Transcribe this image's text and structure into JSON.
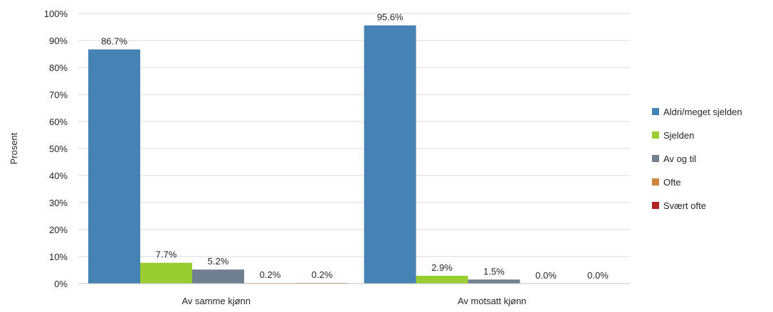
{
  "chart_data": {
    "type": "bar",
    "ylabel": "Prosent",
    "xlabel": "",
    "ylim": [
      0,
      100
    ],
    "yticks": [
      "0%",
      "10%",
      "20%",
      "30%",
      "40%",
      "50%",
      "60%",
      "70%",
      "80%",
      "90%",
      "100%"
    ],
    "grid": true,
    "legend_position": "right",
    "categories": [
      "Av samme kjønn",
      "Av motsatt kjønn"
    ],
    "series": [
      {
        "name": "Aldri/meget sjelden",
        "color": "#4682b4",
        "values": [
          86.7,
          95.6
        ],
        "labels": [
          "86.7%",
          "95.6%"
        ]
      },
      {
        "name": "Sjelden",
        "color": "#9acd32",
        "values": [
          7.7,
          2.9
        ],
        "labels": [
          "7.7%",
          "2.9%"
        ]
      },
      {
        "name": "Av og til",
        "color": "#708090",
        "values": [
          5.2,
          1.5
        ],
        "labels": [
          "5.2%",
          "1.5%"
        ]
      },
      {
        "name": "Ofte",
        "color": "#cd853f",
        "values": [
          0.2,
          0.0
        ],
        "labels": [
          "0.2%",
          "0.0%"
        ]
      },
      {
        "name": "Svært ofte",
        "color": "#b22222",
        "values": [
          0.2,
          0.0
        ],
        "labels": [
          "0.2%",
          "0.0%"
        ]
      }
    ]
  }
}
